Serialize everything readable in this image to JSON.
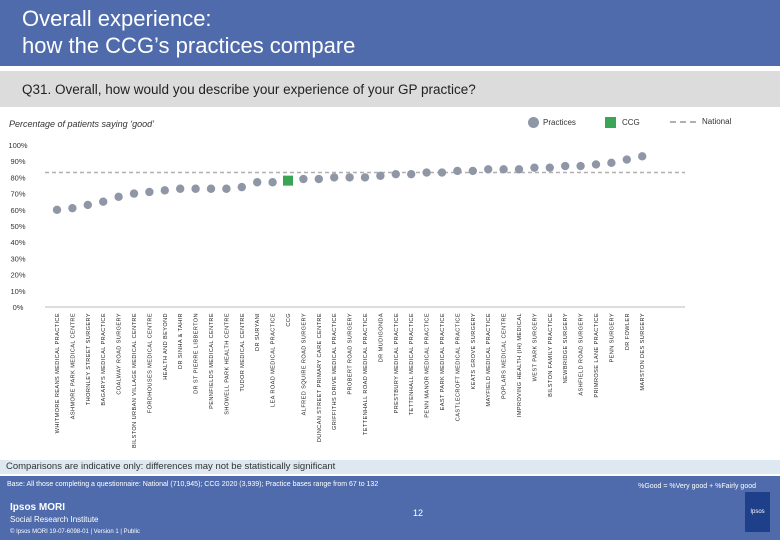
{
  "header": {
    "title_line1": "Overall experience:",
    "title_line2": "how the CCG’s practices compare",
    "question": "Q31. Overall, how would you describe your experience of your GP practice?"
  },
  "subtitle": "Percentage of patients saying ‘good’",
  "legend": {
    "practices": "Practices",
    "ccg": "CCG",
    "national": "National"
  },
  "colors": {
    "practice_marker": "#8f97a6",
    "ccg_marker": "#3aa655",
    "national_line": "#b0b0b0",
    "brand_blue": "#4f6bab"
  },
  "chart_data": {
    "type": "scatter",
    "ylim": [
      0,
      100
    ],
    "yticks": [
      "0%",
      "10%",
      "20%",
      "30%",
      "40%",
      "50%",
      "60%",
      "70%",
      "80%",
      "90%",
      "100%"
    ],
    "national_value": 83,
    "ccg_index": 15,
    "categories": [
      "WHITMORE REANS MEDICAL PRACTICE",
      "ASHMORE PARK MEDICAL CENTRE",
      "THORNLEY STREET SURGERY",
      "BAGARYS MEDICAL PRACTICE",
      "COALWAY ROAD SURGERY",
      "BILSTON URBAN VILLAGE MEDICAL CENTRE",
      "FORDHOUSES MEDICAL CENTRE",
      "HEALTH AND BEYOND",
      "DR SINHA & TAHIR",
      "DR ST PIERRE LIBBERTON",
      "PENNFIELDS MEDICAL CENTRE",
      "SHOWELL PARK HEALTH CENTRE",
      "TUDOR MEDICAL CENTRE",
      "DR SURYANI",
      "LEA ROAD MEDICAL PRACTICE",
      "CCG",
      "ALFRED SQUIRE ROAD SURGERY",
      "DUNCAN STREET PRIMARY CARE CENTRE",
      "GRIFFITHS DRIVE MEDICAL PRACTICE",
      "PROBERT ROAD SURGERY",
      "TETTENHALL ROAD MEDICAL PRACTICE",
      "DR MUDIGONDA",
      "PRESTBURY MEDICAL PRACTICE",
      "TETTENHALL MEDICAL PRACTICE",
      "PENN MANOR MEDICAL PRACTICE",
      "EAST PARK MEDICAL PRACTICE",
      "CASTLECROFT MEDICAL PRACTICE",
      "KEATS GROVE SURGERY",
      "MAYFIELD MEDICAL PRACTICE",
      "POPLARS MEDICAL CENTRE",
      "IMPROVING HEALTH (IH) MEDICAL",
      "WEST PARK SURGERY",
      "BILSTON FAMILY PRACTICE",
      "NEWBRIDGE SURGERY",
      "ASHFIELD ROAD SURGERY",
      "PRIMROSE LANE PRACTICE",
      "PENN SURGERY",
      "DR FOWLER",
      "MARSTON DES SURGERY"
    ],
    "values": [
      60,
      61,
      63,
      65,
      68,
      70,
      71,
      72,
      73,
      73,
      73,
      73,
      74,
      77,
      77,
      78,
      79,
      79,
      80,
      80,
      80,
      81,
      82,
      82,
      83,
      83,
      84,
      84,
      85,
      85,
      85,
      86,
      86,
      87,
      87,
      88,
      89,
      91,
      93
    ]
  },
  "note": "Comparisons are indicative only: differences may not be statistically significant",
  "footer": {
    "base": "Base: All those completing a questionnaire: National (710,945); CCG 2020 (3,939); Practice bases range from 67 to 132",
    "formula": "%Good = %Very good + %Fairly good",
    "page": "12",
    "logo_name": "Ipsos MORI",
    "logo_sub": "Social Research Institute",
    "copyright": "© Ipsos MORI     19-07-6098-01 | Version 1 | Public",
    "logo_box": "Ipsos"
  }
}
